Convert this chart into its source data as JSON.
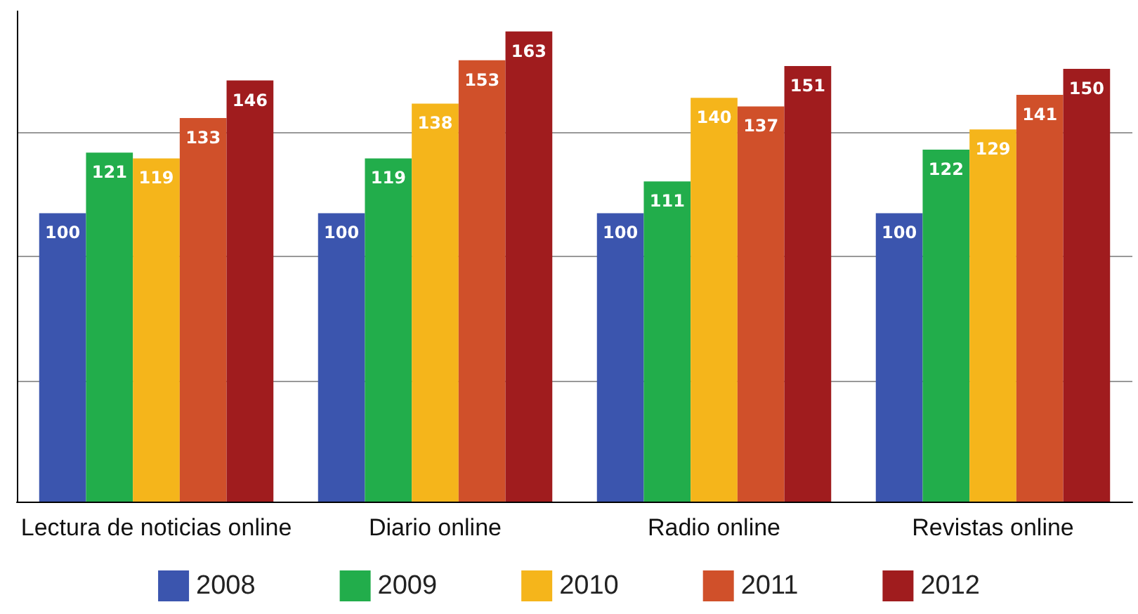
{
  "chart_data": {
    "type": "bar",
    "categories": [
      "Lectura de noticias online",
      "Diario online",
      "Radio online",
      "Revistas online"
    ],
    "series": [
      {
        "name": "2008",
        "color": "#3b55ae",
        "values": [
          100,
          100,
          100,
          100
        ]
      },
      {
        "name": "2009",
        "color": "#22ad4b",
        "values": [
          121,
          119,
          111,
          122
        ]
      },
      {
        "name": "2010",
        "color": "#f5b51b",
        "values": [
          119,
          138,
          140,
          129
        ]
      },
      {
        "name": "2011",
        "color": "#d0502a",
        "values": [
          133,
          153,
          137,
          141
        ]
      },
      {
        "name": "2012",
        "color": "#a01c1e",
        "values": [
          146,
          163,
          151,
          150
        ]
      }
    ],
    "ylim": [
      0,
      170
    ],
    "yticks": [
      {
        "value": 0,
        "label": null
      },
      {
        "value": 42,
        "label": null
      },
      {
        "value": 85,
        "label": null
      },
      {
        "value": 128,
        "label": null
      }
    ],
    "grid": "y",
    "tick_labels": "x",
    "legend": "bottom",
    "data_labels": true
  }
}
